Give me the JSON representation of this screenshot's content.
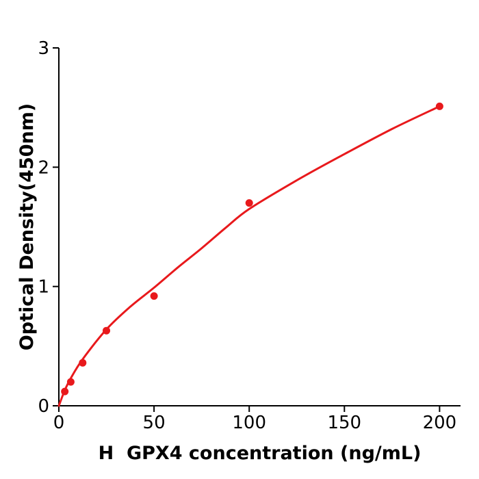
{
  "chart_data": {
    "type": "scatter",
    "title": "",
    "xlabel": "H  GPX4 concentration (ng/mL)",
    "ylabel": "Optical Density(450nm)",
    "xlim": [
      0,
      211
    ],
    "ylim": [
      0,
      3
    ],
    "x_ticks": [
      0,
      50,
      100,
      150,
      200
    ],
    "y_ticks": [
      0,
      1,
      2,
      3
    ],
    "grid": false,
    "legend": false,
    "background_color": "#ffffff",
    "axis_color": "#000000",
    "point_color": "#e8191c",
    "line_color": "#e8191c",
    "series": [
      {
        "name": "standard-points",
        "type": "scatter",
        "x": [
          3.125,
          6.25,
          12.5,
          25,
          50,
          100,
          200
        ],
        "y": [
          0.12,
          0.2,
          0.36,
          0.63,
          0.92,
          1.7,
          2.51
        ]
      },
      {
        "name": "fitted-curve",
        "type": "line",
        "x": [
          0,
          3.125,
          6.25,
          12.5,
          25,
          37.5,
          50,
          62.5,
          75,
          87.5,
          100,
          125,
          150,
          175,
          200
        ],
        "y": [
          0,
          0.13,
          0.23,
          0.39,
          0.64,
          0.83,
          0.99,
          1.16,
          1.32,
          1.49,
          1.65,
          1.89,
          2.11,
          2.32,
          2.51
        ]
      }
    ]
  }
}
